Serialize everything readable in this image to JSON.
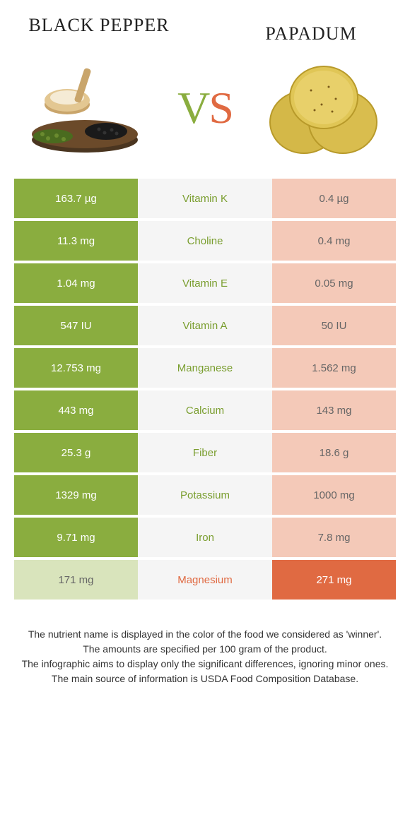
{
  "left_food": "Black Pepper",
  "right_food": "Papadum",
  "vs_text": {
    "v": "V",
    "s": "S"
  },
  "colors": {
    "green": "#8aad3f",
    "light_green": "#d9e4bc",
    "orange": "#e06a42",
    "light_orange": "#f4c9b8",
    "mid_bg": "#f5f5f5"
  },
  "font": {
    "title_size": 26,
    "cell_size": 15,
    "footer_size": 14
  },
  "rows": [
    {
      "nutrient": "Vitamin K",
      "left": "163.7 µg",
      "right": "0.4 µg",
      "winner": "left"
    },
    {
      "nutrient": "Choline",
      "left": "11.3 mg",
      "right": "0.4 mg",
      "winner": "left"
    },
    {
      "nutrient": "Vitamin E",
      "left": "1.04 mg",
      "right": "0.05 mg",
      "winner": "left"
    },
    {
      "nutrient": "Vitamin A",
      "left": "547 IU",
      "right": "50 IU",
      "winner": "left"
    },
    {
      "nutrient": "Manganese",
      "left": "12.753 mg",
      "right": "1.562 mg",
      "winner": "left"
    },
    {
      "nutrient": "Calcium",
      "left": "443 mg",
      "right": "143 mg",
      "winner": "left"
    },
    {
      "nutrient": "Fiber",
      "left": "25.3 g",
      "right": "18.6 g",
      "winner": "left"
    },
    {
      "nutrient": "Potassium",
      "left": "1329 mg",
      "right": "1000 mg",
      "winner": "left"
    },
    {
      "nutrient": "Iron",
      "left": "9.71 mg",
      "right": "7.8 mg",
      "winner": "left"
    },
    {
      "nutrient": "Magnesium",
      "left": "171 mg",
      "right": "271 mg",
      "winner": "right"
    }
  ],
  "footer_lines": [
    "The nutrient name is displayed in the color of the food we considered as 'winner'.",
    "The amounts are specified per 100 gram of the product.",
    "The infographic aims to display only the significant differences, ignoring minor ones.",
    "The main source of information is USDA Food Composition Database."
  ]
}
